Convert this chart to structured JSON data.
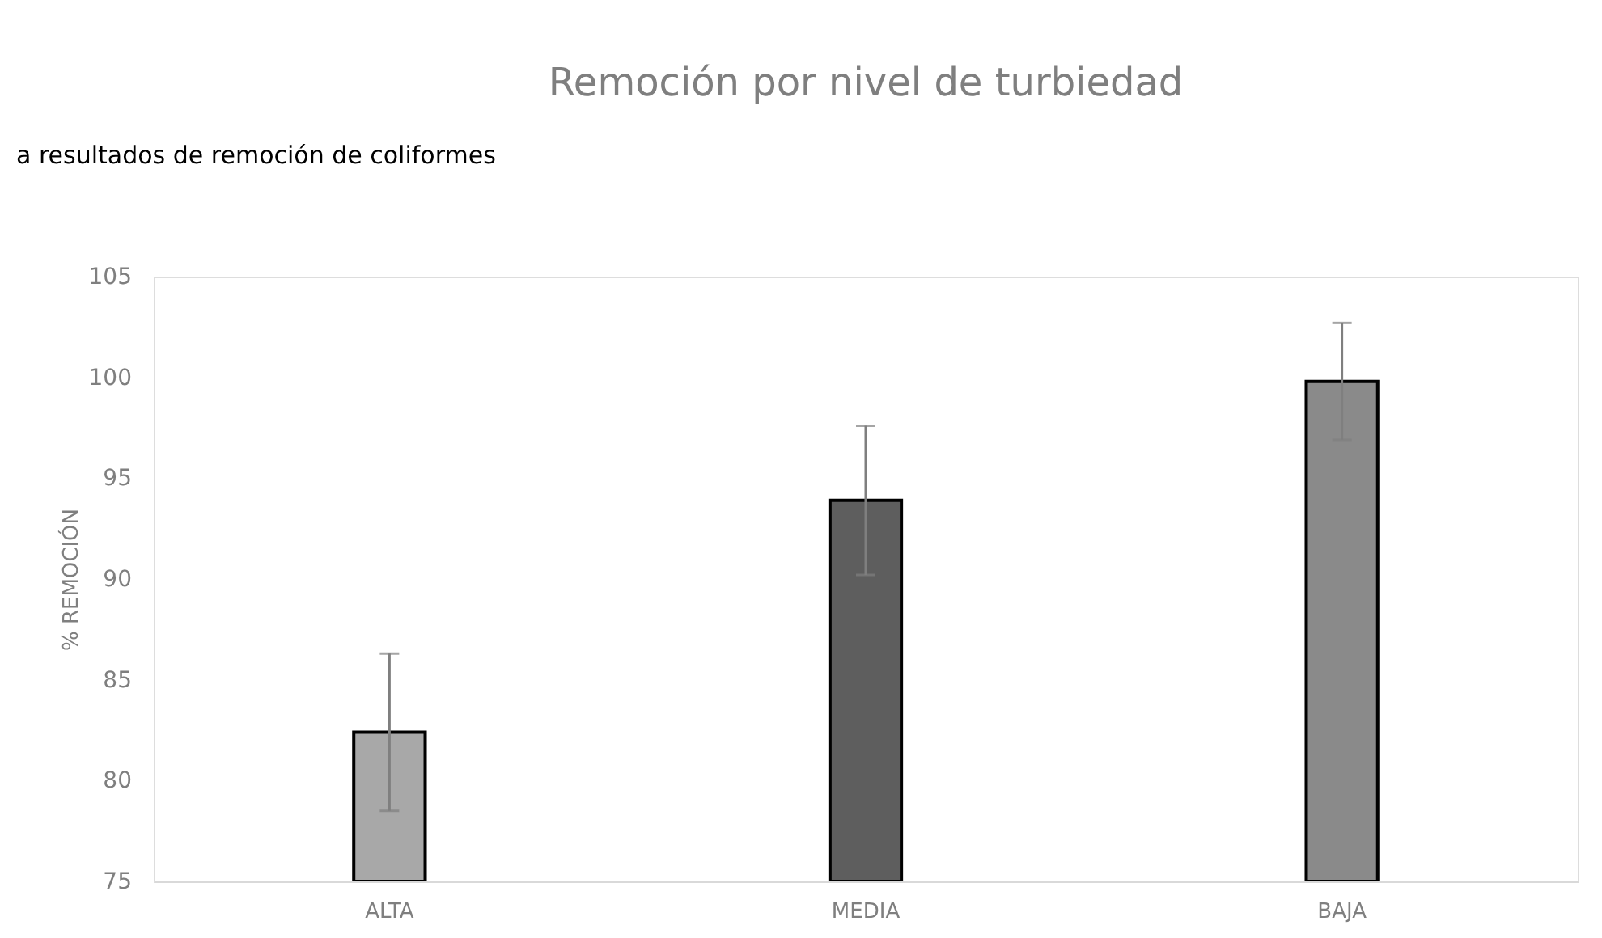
{
  "chart_data": {
    "type": "bar",
    "title": "Remoción por nivel de turbiedad",
    "ylabel": "% REMOCIÓN",
    "annotations": [
      "a resultados de remoción de coliformes"
    ],
    "categories": [
      "ALTA",
      "MEDIA",
      "BAJA"
    ],
    "values": [
      82.4,
      93.9,
      99.8
    ],
    "errors": [
      3.9,
      3.7,
      2.9
    ],
    "colors": [
      "#a8a8a8",
      "#5e5e5e",
      "#8a8a8a"
    ],
    "ylim": [
      75,
      105
    ],
    "yticks": [
      75,
      80,
      85,
      90,
      95,
      100,
      105
    ],
    "grid": false
  }
}
